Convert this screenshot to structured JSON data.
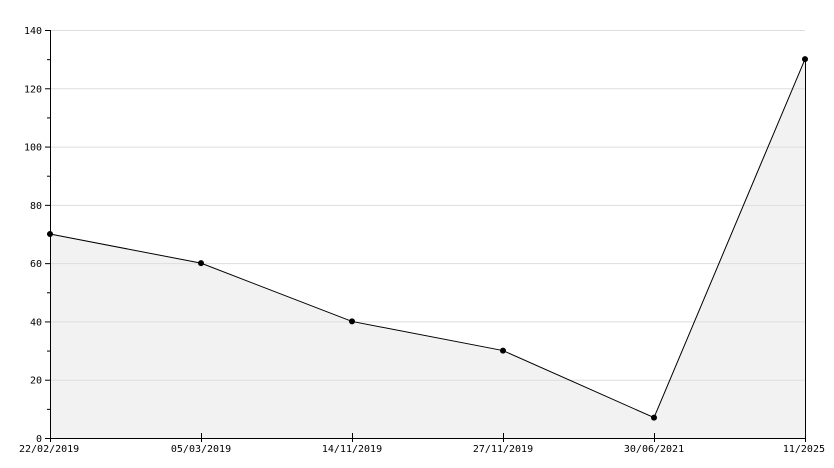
{
  "chart_data": {
    "type": "area",
    "categories": [
      "22/02/2019",
      "05/03/2019",
      "14/11/2019",
      "27/11/2019",
      "30/06/2021",
      "11/2025"
    ],
    "values": [
      70,
      60,
      40,
      30,
      7,
      130
    ],
    "title": "",
    "xlabel": "",
    "ylabel": "",
    "ylim": [
      0,
      140
    ],
    "yticks": [
      0,
      20,
      40,
      60,
      80,
      100,
      120,
      140
    ],
    "grid": true,
    "colors": {
      "fill": "#f2f2f2",
      "line": "#000000",
      "grid": "#dddddd",
      "axis": "#000000"
    }
  }
}
